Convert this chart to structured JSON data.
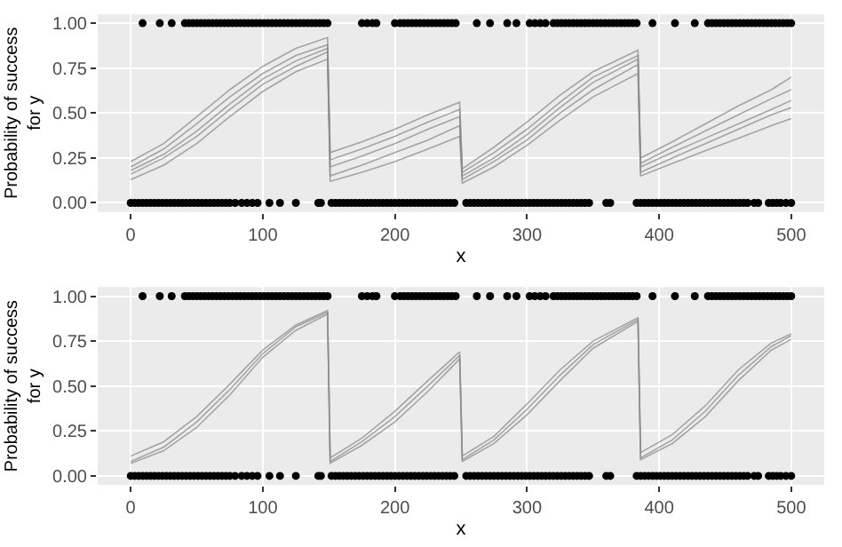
{
  "chart_data": [
    {
      "type": "scatter",
      "xlabel": "x",
      "ylabel": "Probability of success for y",
      "xlim": [
        -25,
        525
      ],
      "ylim": [
        -0.05,
        1.05
      ],
      "xticks": [
        0,
        100,
        200,
        300,
        400,
        500
      ],
      "yticks": [
        {
          "value": 0,
          "label": "0.00"
        },
        {
          "value": 0.25,
          "label": "0.25"
        },
        {
          "value": 0.5,
          "label": "0.50"
        },
        {
          "value": 0.75,
          "label": "0.75"
        },
        {
          "value": 1,
          "label": "1.00"
        }
      ],
      "grid": true,
      "series": [
        {
          "type": "line",
          "marker": "none",
          "color": "#8c8c8c",
          "x": [
            0,
            25,
            50,
            75,
            100,
            125,
            149,
            151,
            175,
            200,
            225,
            249,
            251,
            275,
            300,
            325,
            350,
            384,
            386,
            410,
            435,
            460,
            485,
            500
          ],
          "values": [
            0.13,
            0.21,
            0.33,
            0.48,
            0.62,
            0.73,
            0.8,
            0.12,
            0.17,
            0.23,
            0.3,
            0.37,
            0.11,
            0.2,
            0.32,
            0.46,
            0.59,
            0.72,
            0.15,
            0.22,
            0.29,
            0.36,
            0.43,
            0.47
          ]
        },
        {
          "type": "line",
          "marker": "none",
          "color": "#8c8c8c",
          "x": [
            0,
            25,
            50,
            75,
            100,
            125,
            149,
            151,
            175,
            200,
            225,
            249,
            251,
            275,
            300,
            325,
            350,
            384,
            386,
            410,
            435,
            460,
            485,
            500
          ],
          "values": [
            0.16,
            0.25,
            0.37,
            0.52,
            0.66,
            0.76,
            0.84,
            0.15,
            0.21,
            0.28,
            0.35,
            0.43,
            0.13,
            0.23,
            0.35,
            0.5,
            0.63,
            0.77,
            0.17,
            0.25,
            0.33,
            0.41,
            0.49,
            0.53
          ]
        },
        {
          "type": "line",
          "marker": "none",
          "color": "#8c8c8c",
          "x": [
            0,
            25,
            50,
            75,
            100,
            125,
            149,
            151,
            175,
            200,
            225,
            249,
            251,
            275,
            300,
            325,
            350,
            384,
            386,
            410,
            435,
            460,
            485,
            500
          ],
          "values": [
            0.18,
            0.27,
            0.4,
            0.55,
            0.69,
            0.79,
            0.86,
            0.2,
            0.26,
            0.33,
            0.41,
            0.48,
            0.15,
            0.25,
            0.38,
            0.53,
            0.67,
            0.8,
            0.2,
            0.28,
            0.36,
            0.44,
            0.52,
            0.57
          ]
        },
        {
          "type": "line",
          "marker": "none",
          "color": "#8c8c8c",
          "x": [
            0,
            25,
            50,
            75,
            100,
            125,
            149,
            151,
            175,
            200,
            225,
            249,
            251,
            275,
            300,
            325,
            350,
            384,
            386,
            410,
            435,
            460,
            485,
            500
          ],
          "values": [
            0.2,
            0.3,
            0.44,
            0.59,
            0.72,
            0.82,
            0.88,
            0.24,
            0.3,
            0.37,
            0.45,
            0.52,
            0.17,
            0.28,
            0.41,
            0.56,
            0.7,
            0.82,
            0.22,
            0.31,
            0.4,
            0.49,
            0.58,
            0.63
          ]
        },
        {
          "type": "line",
          "marker": "none",
          "color": "#8c8c8c",
          "x": [
            0,
            25,
            50,
            75,
            100,
            125,
            149,
            151,
            175,
            200,
            225,
            249,
            251,
            275,
            300,
            325,
            350,
            384,
            386,
            410,
            435,
            460,
            485,
            500
          ],
          "values": [
            0.23,
            0.33,
            0.48,
            0.63,
            0.76,
            0.86,
            0.92,
            0.28,
            0.34,
            0.41,
            0.49,
            0.56,
            0.19,
            0.31,
            0.45,
            0.6,
            0.73,
            0.85,
            0.25,
            0.34,
            0.44,
            0.54,
            0.63,
            0.7
          ]
        },
        {
          "marker": "circle",
          "color": "#000000",
          "x": [
            9,
            22,
            31,
            41,
            44,
            47,
            50,
            53,
            56,
            59,
            62,
            65,
            68,
            71,
            74,
            77,
            80,
            83,
            86,
            89,
            92,
            95,
            98,
            101,
            104,
            107,
            110,
            113,
            116,
            119,
            122,
            125,
            128,
            131,
            134,
            137,
            140,
            143,
            146,
            149,
            175,
            179,
            183,
            186,
            200,
            204,
            207,
            210,
            213,
            216,
            219,
            222,
            225,
            228,
            231,
            234,
            237,
            240,
            243,
            246,
            262,
            272,
            285,
            292,
            302,
            306,
            310,
            314,
            320,
            323,
            326,
            329,
            332,
            335,
            338,
            341,
            344,
            347,
            350,
            353,
            356,
            359,
            362,
            365,
            368,
            371,
            374,
            377,
            380,
            383,
            395,
            412,
            427,
            437,
            440,
            443,
            446,
            449,
            452,
            455,
            458,
            461,
            464,
            467,
            470,
            473,
            476,
            479,
            482,
            485,
            488,
            491,
            494,
            497,
            500
          ],
          "values": [
            1,
            1,
            1,
            1,
            1,
            1,
            1,
            1,
            1,
            1,
            1,
            1,
            1,
            1,
            1,
            1,
            1,
            1,
            1,
            1,
            1,
            1,
            1,
            1,
            1,
            1,
            1,
            1,
            1,
            1,
            1,
            1,
            1,
            1,
            1,
            1,
            1,
            1,
            1,
            1,
            1,
            1,
            1,
            1,
            1,
            1,
            1,
            1,
            1,
            1,
            1,
            1,
            1,
            1,
            1,
            1,
            1,
            1,
            1,
            1,
            1,
            1,
            1,
            1,
            1,
            1,
            1,
            1,
            1,
            1,
            1,
            1,
            1,
            1,
            1,
            1,
            1,
            1,
            1,
            1,
            1,
            1,
            1,
            1,
            1,
            1,
            1,
            1,
            1,
            1,
            1,
            1,
            1,
            1,
            1,
            1,
            1,
            1,
            1,
            1,
            1,
            1,
            1,
            1,
            1,
            1,
            1,
            1,
            1,
            1,
            1,
            1,
            1,
            1,
            1
          ]
        },
        {
          "marker": "circle",
          "color": "#000000",
          "x": [
            0,
            3,
            6,
            9,
            12,
            15,
            18,
            21,
            24,
            27,
            30,
            33,
            36,
            39,
            42,
            45,
            48,
            51,
            54,
            57,
            60,
            63,
            66,
            69,
            72,
            75,
            79,
            84,
            88,
            92,
            96,
            105,
            113,
            125,
            142,
            144,
            152,
            155,
            158,
            161,
            164,
            167,
            170,
            173,
            176,
            179,
            182,
            185,
            188,
            191,
            194,
            197,
            200,
            203,
            206,
            209,
            212,
            215,
            218,
            221,
            224,
            227,
            230,
            233,
            236,
            239,
            242,
            245,
            254,
            257,
            260,
            263,
            266,
            269,
            272,
            275,
            278,
            281,
            284,
            287,
            290,
            293,
            296,
            299,
            302,
            305,
            308,
            311,
            314,
            317,
            320,
            323,
            326,
            329,
            332,
            335,
            338,
            341,
            344,
            347,
            360,
            363,
            383,
            386,
            389,
            392,
            395,
            398,
            401,
            404,
            407,
            410,
            413,
            416,
            419,
            422,
            425,
            428,
            431,
            434,
            437,
            440,
            443,
            446,
            449,
            452,
            455,
            458,
            461,
            464,
            467,
            472,
            475,
            483,
            486,
            489,
            492,
            496,
            500
          ],
          "values": [
            0,
            0,
            0,
            0,
            0,
            0,
            0,
            0,
            0,
            0,
            0,
            0,
            0,
            0,
            0,
            0,
            0,
            0,
            0,
            0,
            0,
            0,
            0,
            0,
            0,
            0,
            0,
            0,
            0,
            0,
            0,
            0,
            0,
            0,
            0,
            0,
            0,
            0,
            0,
            0,
            0,
            0,
            0,
            0,
            0,
            0,
            0,
            0,
            0,
            0,
            0,
            0,
            0,
            0,
            0,
            0,
            0,
            0,
            0,
            0,
            0,
            0,
            0,
            0,
            0,
            0,
            0,
            0,
            0,
            0,
            0,
            0,
            0,
            0,
            0,
            0,
            0,
            0,
            0,
            0,
            0,
            0,
            0,
            0,
            0,
            0,
            0,
            0,
            0,
            0,
            0,
            0,
            0,
            0,
            0,
            0,
            0,
            0,
            0,
            0,
            0,
            0,
            0,
            0,
            0,
            0,
            0,
            0,
            0,
            0,
            0,
            0,
            0,
            0,
            0,
            0,
            0,
            0,
            0,
            0,
            0,
            0,
            0,
            0,
            0,
            0,
            0,
            0,
            0,
            0,
            0,
            0,
            0,
            0,
            0,
            0,
            0,
            0,
            0
          ]
        }
      ]
    },
    {
      "type": "scatter",
      "xlabel": "x",
      "ylabel": "Probability of success for y",
      "xlim": [
        -25,
        525
      ],
      "ylim": [
        -0.05,
        1.05
      ],
      "xticks": [
        0,
        100,
        200,
        300,
        400,
        500
      ],
      "yticks": [
        {
          "value": 0,
          "label": "0.00"
        },
        {
          "value": 0.25,
          "label": "0.25"
        },
        {
          "value": 0.5,
          "label": "0.50"
        },
        {
          "value": 0.75,
          "label": "0.75"
        },
        {
          "value": 1,
          "label": "1.00"
        }
      ],
      "grid": true,
      "series": [
        {
          "type": "line",
          "marker": "none",
          "color": "#8c8c8c",
          "x": [
            0,
            25,
            50,
            75,
            100,
            125,
            149,
            151,
            175,
            200,
            225,
            249,
            251,
            275,
            300,
            325,
            350,
            384,
            386,
            410,
            435,
            460,
            485,
            500
          ],
          "values": [
            0.07,
            0.14,
            0.27,
            0.45,
            0.66,
            0.81,
            0.9,
            0.07,
            0.17,
            0.3,
            0.47,
            0.65,
            0.08,
            0.18,
            0.34,
            0.53,
            0.71,
            0.86,
            0.09,
            0.18,
            0.33,
            0.53,
            0.7,
            0.76
          ]
        },
        {
          "type": "line",
          "marker": "none",
          "color": "#8c8c8c",
          "x": [
            0,
            25,
            50,
            75,
            100,
            125,
            149,
            151,
            175,
            200,
            225,
            249,
            251,
            275,
            300,
            325,
            350,
            384,
            386,
            410,
            435,
            460,
            485,
            500
          ],
          "values": [
            0.08,
            0.16,
            0.3,
            0.48,
            0.68,
            0.83,
            0.91,
            0.08,
            0.19,
            0.33,
            0.5,
            0.67,
            0.09,
            0.2,
            0.37,
            0.56,
            0.73,
            0.87,
            0.1,
            0.2,
            0.36,
            0.56,
            0.72,
            0.78
          ]
        },
        {
          "type": "line",
          "marker": "none",
          "color": "#8c8c8c",
          "x": [
            0,
            25,
            50,
            75,
            100,
            125,
            149,
            151,
            175,
            200,
            225,
            249,
            251,
            275,
            300,
            325,
            350,
            384,
            386,
            410,
            435,
            460,
            485,
            500
          ],
          "values": [
            0.11,
            0.19,
            0.33,
            0.51,
            0.7,
            0.84,
            0.92,
            0.1,
            0.21,
            0.36,
            0.53,
            0.69,
            0.11,
            0.22,
            0.4,
            0.59,
            0.75,
            0.88,
            0.13,
            0.23,
            0.39,
            0.59,
            0.74,
            0.79
          ]
        },
        {
          "marker": "circle",
          "color": "#000000",
          "x": [
            9,
            22,
            31,
            41,
            44,
            47,
            50,
            53,
            56,
            59,
            62,
            65,
            68,
            71,
            74,
            77,
            80,
            83,
            86,
            89,
            92,
            95,
            98,
            101,
            104,
            107,
            110,
            113,
            116,
            119,
            122,
            125,
            128,
            131,
            134,
            137,
            140,
            143,
            146,
            149,
            175,
            179,
            183,
            186,
            200,
            204,
            207,
            210,
            213,
            216,
            219,
            222,
            225,
            228,
            231,
            234,
            237,
            240,
            243,
            246,
            262,
            272,
            285,
            292,
            302,
            306,
            310,
            314,
            320,
            323,
            326,
            329,
            332,
            335,
            338,
            341,
            344,
            347,
            350,
            353,
            356,
            359,
            362,
            365,
            368,
            371,
            374,
            377,
            380,
            383,
            395,
            412,
            427,
            437,
            440,
            443,
            446,
            449,
            452,
            455,
            458,
            461,
            464,
            467,
            470,
            473,
            476,
            479,
            482,
            485,
            488,
            491,
            494,
            497,
            500
          ],
          "values": [
            1,
            1,
            1,
            1,
            1,
            1,
            1,
            1,
            1,
            1,
            1,
            1,
            1,
            1,
            1,
            1,
            1,
            1,
            1,
            1,
            1,
            1,
            1,
            1,
            1,
            1,
            1,
            1,
            1,
            1,
            1,
            1,
            1,
            1,
            1,
            1,
            1,
            1,
            1,
            1,
            1,
            1,
            1,
            1,
            1,
            1,
            1,
            1,
            1,
            1,
            1,
            1,
            1,
            1,
            1,
            1,
            1,
            1,
            1,
            1,
            1,
            1,
            1,
            1,
            1,
            1,
            1,
            1,
            1,
            1,
            1,
            1,
            1,
            1,
            1,
            1,
            1,
            1,
            1,
            1,
            1,
            1,
            1,
            1,
            1,
            1,
            1,
            1,
            1,
            1,
            1,
            1,
            1,
            1,
            1,
            1,
            1,
            1,
            1,
            1,
            1,
            1,
            1,
            1,
            1,
            1,
            1,
            1,
            1,
            1,
            1,
            1,
            1,
            1,
            1
          ]
        },
        {
          "marker": "circle",
          "color": "#000000",
          "x": [
            0,
            3,
            6,
            9,
            12,
            15,
            18,
            21,
            24,
            27,
            30,
            33,
            36,
            39,
            42,
            45,
            48,
            51,
            54,
            57,
            60,
            63,
            66,
            69,
            72,
            75,
            79,
            84,
            88,
            92,
            96,
            105,
            113,
            125,
            142,
            144,
            152,
            155,
            158,
            161,
            164,
            167,
            170,
            173,
            176,
            179,
            182,
            185,
            188,
            191,
            194,
            197,
            200,
            203,
            206,
            209,
            212,
            215,
            218,
            221,
            224,
            227,
            230,
            233,
            236,
            239,
            242,
            245,
            254,
            257,
            260,
            263,
            266,
            269,
            272,
            275,
            278,
            281,
            284,
            287,
            290,
            293,
            296,
            299,
            302,
            305,
            308,
            311,
            314,
            317,
            320,
            323,
            326,
            329,
            332,
            335,
            338,
            341,
            344,
            347,
            360,
            363,
            383,
            386,
            389,
            392,
            395,
            398,
            401,
            404,
            407,
            410,
            413,
            416,
            419,
            422,
            425,
            428,
            431,
            434,
            437,
            440,
            443,
            446,
            449,
            452,
            455,
            458,
            461,
            464,
            467,
            472,
            475,
            483,
            486,
            489,
            492,
            496,
            500
          ],
          "values": [
            0,
            0,
            0,
            0,
            0,
            0,
            0,
            0,
            0,
            0,
            0,
            0,
            0,
            0,
            0,
            0,
            0,
            0,
            0,
            0,
            0,
            0,
            0,
            0,
            0,
            0,
            0,
            0,
            0,
            0,
            0,
            0,
            0,
            0,
            0,
            0,
            0,
            0,
            0,
            0,
            0,
            0,
            0,
            0,
            0,
            0,
            0,
            0,
            0,
            0,
            0,
            0,
            0,
            0,
            0,
            0,
            0,
            0,
            0,
            0,
            0,
            0,
            0,
            0,
            0,
            0,
            0,
            0,
            0,
            0,
            0,
            0,
            0,
            0,
            0,
            0,
            0,
            0,
            0,
            0,
            0,
            0,
            0,
            0,
            0,
            0,
            0,
            0,
            0,
            0,
            0,
            0,
            0,
            0,
            0,
            0,
            0,
            0,
            0,
            0,
            0,
            0,
            0,
            0,
            0,
            0,
            0,
            0,
            0,
            0,
            0,
            0,
            0,
            0,
            0,
            0,
            0,
            0,
            0,
            0,
            0,
            0,
            0,
            0,
            0,
            0,
            0,
            0,
            0,
            0,
            0,
            0,
            0,
            0,
            0,
            0,
            0,
            0,
            0
          ]
        }
      ]
    }
  ]
}
